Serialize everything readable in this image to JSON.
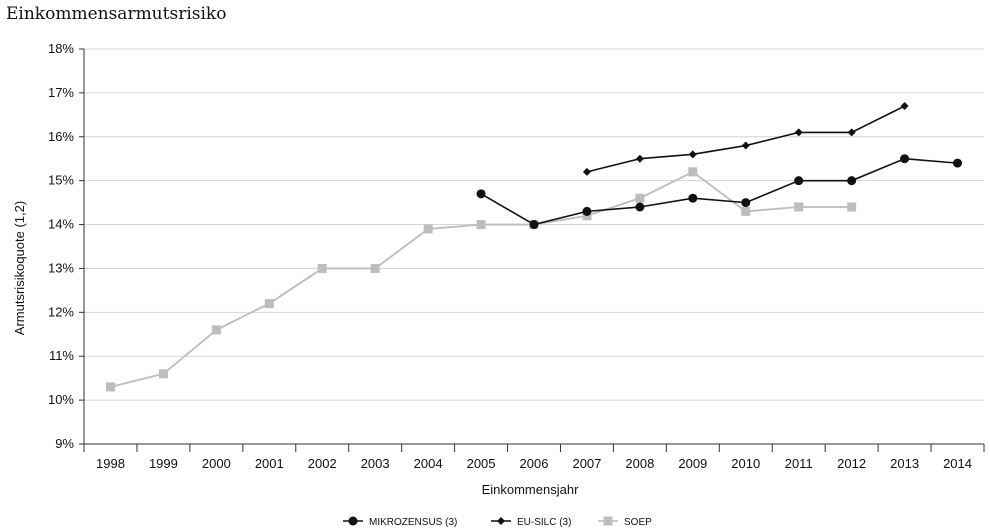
{
  "chart_data": {
    "type": "line",
    "title": "Einkommensarmutsrisiko",
    "xlabel": "Einkommensjahr",
    "ylabel": "Armutsrisikoquote (1,2)",
    "ylim": [
      9,
      18
    ],
    "yticks": [
      "9%",
      "10%",
      "11%",
      "12%",
      "13%",
      "14%",
      "15%",
      "16%",
      "17%",
      "18%"
    ],
    "grid": true,
    "legend_position": "bottom",
    "categories": [
      "1998",
      "1999",
      "2000",
      "2001",
      "2002",
      "2003",
      "2004",
      "2005",
      "2006",
      "2007",
      "2008",
      "2009",
      "2010",
      "2011",
      "2012",
      "2013",
      "2014"
    ],
    "series": [
      {
        "name": "MIKROZENSUS (3)",
        "color": "#111111",
        "marker": "circle",
        "values": [
          null,
          null,
          null,
          null,
          null,
          null,
          null,
          14.7,
          14.0,
          14.3,
          14.4,
          14.6,
          14.5,
          15.0,
          15.0,
          15.5,
          15.4
        ]
      },
      {
        "name": "EU-SILC (3)",
        "color": "#111111",
        "marker": "diamond",
        "values": [
          null,
          null,
          null,
          null,
          null,
          null,
          null,
          null,
          null,
          15.2,
          15.5,
          15.6,
          15.8,
          16.1,
          16.1,
          16.7,
          null
        ]
      },
      {
        "name": "SOEP",
        "color": "#bdbdbd",
        "marker": "square",
        "values": [
          10.3,
          10.6,
          11.6,
          12.2,
          13.0,
          13.0,
          13.9,
          14.0,
          14.0,
          14.2,
          14.6,
          15.2,
          14.3,
          14.4,
          14.4,
          null,
          null
        ]
      }
    ]
  }
}
